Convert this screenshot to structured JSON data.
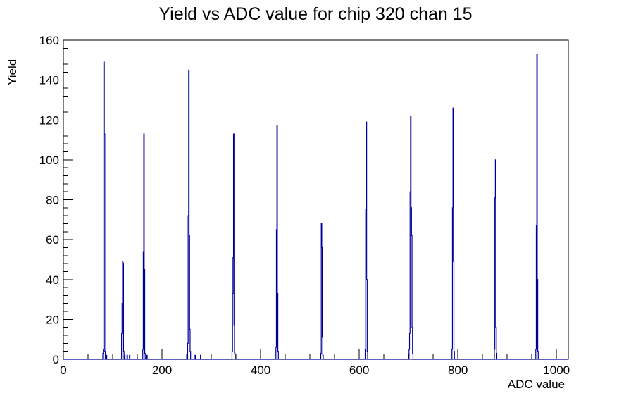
{
  "page": {
    "background": "#ffffff"
  },
  "chart_data": {
    "type": "bar",
    "subtype": "histogram-outline",
    "title": "Yield vs ADC value for chip 320 chan 15",
    "xlabel": "ADC value",
    "ylabel": "Yield",
    "xlim": [
      0,
      1024
    ],
    "ylim": [
      0,
      160
    ],
    "x_major_ticks": [
      0,
      200,
      400,
      600,
      800,
      1000
    ],
    "x_minor_tick_step": 50,
    "y_major_ticks": [
      0,
      20,
      40,
      60,
      80,
      100,
      120,
      140,
      160
    ],
    "y_minor_tick_step": 4,
    "grid": false,
    "legend_position": "none",
    "line_color": "#000099",
    "frame_color": "#000000",
    "bin_width": 1,
    "bins": [
      [
        80,
        3
      ],
      [
        81,
        5
      ],
      [
        82,
        149
      ],
      [
        83,
        113
      ],
      [
        84,
        4
      ],
      [
        87,
        2
      ],
      [
        118,
        13
      ],
      [
        119,
        28
      ],
      [
        120,
        49
      ],
      [
        121,
        48
      ],
      [
        122,
        4
      ],
      [
        124,
        2
      ],
      [
        129,
        2
      ],
      [
        134,
        2
      ],
      [
        161,
        5
      ],
      [
        162,
        54
      ],
      [
        163,
        113
      ],
      [
        164,
        45
      ],
      [
        165,
        3
      ],
      [
        169,
        2
      ],
      [
        252,
        8
      ],
      [
        253,
        72
      ],
      [
        254,
        145
      ],
      [
        255,
        62
      ],
      [
        256,
        15
      ],
      [
        257,
        4
      ],
      [
        267,
        2
      ],
      [
        278,
        2
      ],
      [
        342,
        4
      ],
      [
        343,
        33
      ],
      [
        344,
        51
      ],
      [
        345,
        113
      ],
      [
        346,
        17
      ],
      [
        347,
        3
      ],
      [
        431,
        6
      ],
      [
        432,
        65
      ],
      [
        433,
        117
      ],
      [
        434,
        33
      ],
      [
        435,
        4
      ],
      [
        522,
        3
      ],
      [
        523,
        68
      ],
      [
        524,
        56
      ],
      [
        525,
        11
      ],
      [
        526,
        2
      ],
      [
        612,
        5
      ],
      [
        613,
        75
      ],
      [
        614,
        119
      ],
      [
        615,
        40
      ],
      [
        616,
        4
      ],
      [
        701,
        5
      ],
      [
        702,
        13
      ],
      [
        703,
        84
      ],
      [
        704,
        122
      ],
      [
        705,
        76
      ],
      [
        706,
        62
      ],
      [
        707,
        16
      ],
      [
        708,
        3
      ],
      [
        788,
        5
      ],
      [
        789,
        76
      ],
      [
        790,
        126
      ],
      [
        791,
        49
      ],
      [
        792,
        4
      ],
      [
        874,
        5
      ],
      [
        875,
        81
      ],
      [
        876,
        100
      ],
      [
        877,
        16
      ],
      [
        878,
        3
      ],
      [
        958,
        5
      ],
      [
        959,
        67
      ],
      [
        960,
        153
      ],
      [
        961,
        40
      ],
      [
        962,
        4
      ]
    ]
  }
}
